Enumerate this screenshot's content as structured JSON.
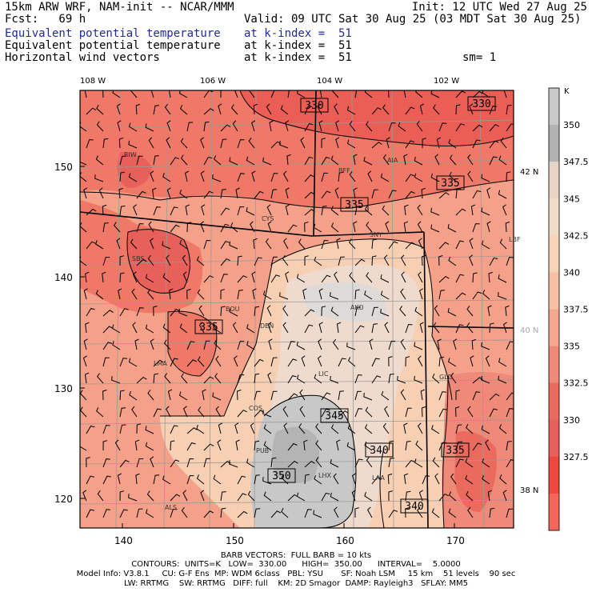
{
  "header": {
    "model_line": "15km ARW WRF, NAM-init -- NCAR/MMM",
    "init_line": "Init: 12 UTC Wed 27 Aug 25",
    "fcst_line": "Fcst:   69 h",
    "valid_line": "Valid: 09 UTC Sat 30 Aug 25 (03 MDT Sat 30 Aug 25)",
    "fields": [
      {
        "name": "Equivalent potential temperature",
        "level": "at k-index =  51",
        "color": "#1f2a9a"
      },
      {
        "name": "Equivalent potential temperature",
        "level": "at k-index =  51",
        "color": "#000000"
      },
      {
        "name": "Horizontal wind vectors",
        "level": "at k-index =  51",
        "color": "#000000"
      }
    ],
    "sm_label": "sm= 1"
  },
  "axes": {
    "top_lon_labels": [
      "108 W",
      "106 W",
      "104 W",
      "102 W"
    ],
    "left_y_ticks": [
      "150",
      "140",
      "130",
      "120"
    ],
    "bottom_x_ticks": [
      "140",
      "150",
      "160",
      "170"
    ],
    "right_lat_labels": [
      "42 N",
      "40 N",
      "38 N"
    ]
  },
  "colorbar": {
    "unit": "K",
    "labels": [
      "350",
      "347.5",
      "345",
      "342.5",
      "340",
      "337.5",
      "335",
      "332.5",
      "330",
      "327.5"
    ],
    "colors": [
      "#c9c9c9",
      "#b2b2b2",
      "#e8d4c4",
      "#f0ddc8",
      "#f7d3b8",
      "#f7c0a4",
      "#f4a890",
      "#ef8a78",
      "#ea6a5e",
      "#e8605a",
      "#f0463e",
      "#f4655a"
    ]
  },
  "contour_labels": [
    "330",
    "330",
    "335",
    "335",
    "335",
    "345",
    "340",
    "335",
    "350",
    "340"
  ],
  "stations": [
    "RIW",
    "AIA",
    "BFF",
    "CYS",
    "SNY",
    "LBF",
    "SBS",
    "BOU",
    "AKO",
    "DEN",
    "LMA",
    "LIC",
    "GLD",
    "COS",
    "PUB",
    "LHX",
    "LAA",
    "ALS"
  ],
  "footer": {
    "line1": "BARB VECTORS:  FULL BARB = 10 kts",
    "line2": "CONTOURS:  UNITS=K   LOW=  330.00      HIGH=  350.00      INTERVAL=    5.0000",
    "line3": "Model Info: V3.8.1     CU: G-F Ens  MP: WDM 6class   PBL: YSU       SF: Noah LSM     15 km    51 levels    90 sec",
    "line4": "LW: RRTMG    SW: RRTMG   DIFF: full    KM: 2D Smagor  DAMP: Rayleigh3   SFLAY: MM5"
  }
}
